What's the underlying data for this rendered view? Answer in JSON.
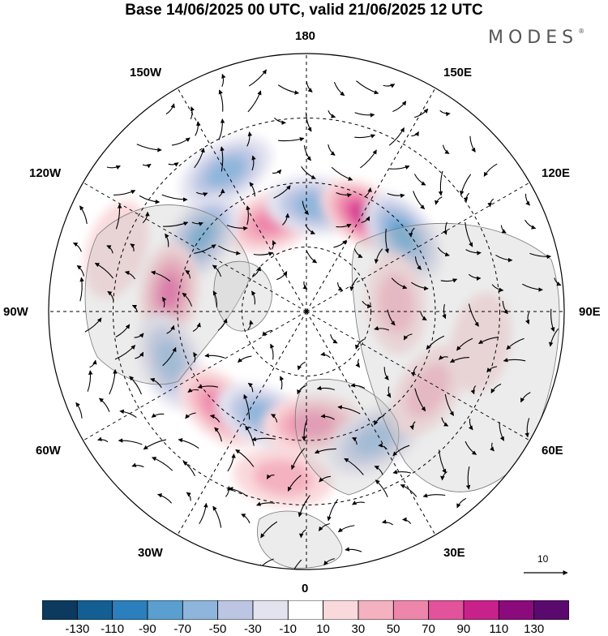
{
  "title": "Base 14/06/2025 00 UTC, valid 21/06/2025 12 UTC",
  "brand": {
    "text": "MODES",
    "mark": "®"
  },
  "longitude_labels": [
    {
      "id": "180",
      "text": "180"
    },
    {
      "id": "150e",
      "text": "150E"
    },
    {
      "id": "120e",
      "text": "120E"
    },
    {
      "id": "90e",
      "text": "90E"
    },
    {
      "id": "60e",
      "text": "60E"
    },
    {
      "id": "30e",
      "text": "30E"
    },
    {
      "id": "0",
      "text": "0"
    },
    {
      "id": "30w",
      "text": "30W"
    },
    {
      "id": "60w",
      "text": "60W"
    },
    {
      "id": "90w",
      "text": "90W"
    },
    {
      "id": "120w",
      "text": "120W"
    },
    {
      "id": "150w",
      "text": "150W"
    }
  ],
  "reference_vector": {
    "value": "10"
  },
  "colorbar": {
    "colors": [
      "#0b3a5e",
      "#135e92",
      "#2b7fbd",
      "#5a9fcf",
      "#8eb5db",
      "#bcc6e3",
      "#e3e3f0",
      "#ffffff",
      "#f9d9dc",
      "#f4b1c0",
      "#ee86ab",
      "#e2539b",
      "#c9218b",
      "#8b0a7c",
      "#5a0a6e"
    ],
    "ticks": [
      "-130",
      "-110",
      "-90",
      "-70",
      "-50",
      "-30",
      "-10",
      "10",
      "30",
      "50",
      "70",
      "90",
      "110",
      "130"
    ]
  },
  "anomaly_cells": [
    {
      "lon": 210,
      "lat": 40,
      "value": -50
    },
    {
      "lon": 200,
      "lat": 60,
      "value": 60
    },
    {
      "lon": 175,
      "lat": 57,
      "value": -60
    },
    {
      "lon": 148,
      "lat": 55,
      "value": 95
    },
    {
      "lon": 128,
      "lat": 52,
      "value": -70
    },
    {
      "lon": 95,
      "lat": 62,
      "value": 40
    },
    {
      "lon": 235,
      "lat": 50,
      "value": -70
    },
    {
      "lon": 262,
      "lat": 47,
      "value": 80
    },
    {
      "lon": 290,
      "lat": 45,
      "value": -60
    },
    {
      "lon": 318,
      "lat": 50,
      "value": 60
    },
    {
      "lon": 338,
      "lat": 55,
      "value": -60
    },
    {
      "lon": 3,
      "lat": 55,
      "value": 60
    },
    {
      "lon": 352,
      "lat": 38,
      "value": 40
    },
    {
      "lon": 28,
      "lat": 45,
      "value": -60
    },
    {
      "lon": 57,
      "lat": 45,
      "value": 30
    },
    {
      "lon": 80,
      "lat": 35,
      "value": 25
    },
    {
      "lon": 252,
      "lat": 28,
      "value": 25
    }
  ]
}
